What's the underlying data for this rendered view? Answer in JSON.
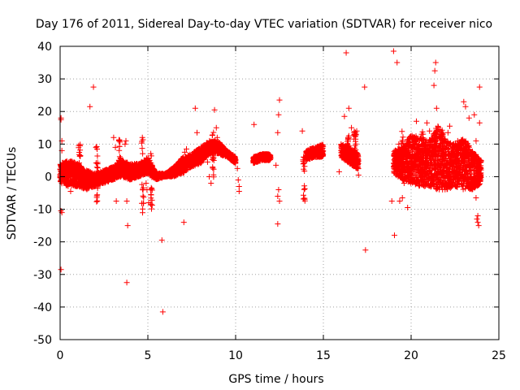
{
  "chart_data": {
    "type": "scatter",
    "title": "Day 176 of 2011, Sidereal Day-to-day VTEC variation (SDTVAR) for receiver nico",
    "xlabel": "GPS time / hours",
    "ylabel": "SDTVAR / TECUs",
    "xlim": [
      0,
      25
    ],
    "ylim": [
      -50,
      40
    ],
    "xticks": [
      0,
      5,
      10,
      15,
      20,
      25
    ],
    "yticks": [
      -50,
      -40,
      -30,
      -20,
      -10,
      0,
      10,
      20,
      30,
      40
    ],
    "grid": true,
    "marker": "+",
    "color": "#ff0000",
    "band": [
      [
        0.0,
        -2,
        4
      ],
      [
        0.5,
        -3,
        5
      ],
      [
        1.0,
        -3,
        4
      ],
      [
        1.5,
        -4,
        2
      ],
      [
        2.0,
        -3,
        1
      ],
      [
        2.5,
        -2,
        2
      ],
      [
        3.0,
        -1,
        3
      ],
      [
        3.5,
        0,
        5
      ],
      [
        4.0,
        -1,
        4
      ],
      [
        4.5,
        0,
        4
      ],
      [
        5.0,
        1,
        6
      ],
      [
        5.5,
        -1,
        1
      ],
      [
        6.0,
        0,
        1
      ],
      [
        6.5,
        0,
        3
      ],
      [
        7.0,
        1,
        6
      ],
      [
        7.5,
        3,
        7
      ],
      [
        8.0,
        4,
        9
      ],
      [
        8.5,
        7,
        11
      ],
      [
        9.0,
        7,
        11
      ],
      [
        9.5,
        6,
        8
      ],
      [
        10.0,
        4,
        6
      ],
      [
        11.0,
        4,
        6
      ],
      [
        11.5,
        5,
        7
      ],
      [
        12.0,
        5,
        7
      ],
      [
        13.0,
        5,
        7
      ],
      [
        14.0,
        5,
        8
      ],
      [
        14.5,
        6,
        9
      ],
      [
        15.0,
        6,
        10
      ],
      [
        16.0,
        6,
        10
      ],
      [
        16.5,
        4,
        9
      ],
      [
        17.0,
        2,
        7
      ],
      [
        18.0,
        0,
        6
      ],
      [
        19.0,
        1,
        8
      ],
      [
        19.5,
        -1,
        9
      ],
      [
        20.0,
        -2,
        13
      ],
      [
        20.5,
        -3,
        12
      ],
      [
        21.0,
        -3,
        11
      ],
      [
        21.5,
        -4,
        16
      ],
      [
        22.0,
        -4,
        11
      ],
      [
        22.5,
        -3,
        10
      ],
      [
        23.0,
        -4,
        12
      ],
      [
        23.5,
        -4,
        8
      ],
      [
        24.0,
        -2,
        5
      ]
    ],
    "plumes": [
      [
        1.1,
        4.5,
        0.9
      ],
      [
        2.1,
        0.5,
        1.5
      ],
      [
        3.4,
        5.5,
        1.0
      ],
      [
        4.7,
        0.5,
        2.0
      ],
      [
        5.2,
        -1.0,
        1.5
      ],
      [
        8.7,
        6.5,
        1.2
      ],
      [
        13.9,
        -0.5,
        1.2
      ],
      [
        16.4,
        10.0,
        0.45
      ],
      [
        16.8,
        11.0,
        0.7
      ],
      [
        19.5,
        8.0,
        1.0
      ],
      [
        20.7,
        7.0,
        1.2
      ],
      [
        21.4,
        8.0,
        1.0
      ],
      [
        21.8,
        9.0,
        0.9
      ],
      [
        22.6,
        7.0,
        1.0
      ]
    ],
    "outliers": [
      [
        0.05,
        18
      ],
      [
        0.05,
        17.5
      ],
      [
        0.1,
        11
      ],
      [
        0.1,
        8
      ],
      [
        0.05,
        -10.5
      ],
      [
        0.1,
        -11
      ],
      [
        0.05,
        -28.5
      ],
      [
        0.6,
        -4.5
      ],
      [
        1.7,
        21.5
      ],
      [
        1.9,
        27.5
      ],
      [
        3.05,
        12
      ],
      [
        3.15,
        9
      ],
      [
        3.2,
        -7.5
      ],
      [
        3.7,
        10
      ],
      [
        3.75,
        11
      ],
      [
        3.8,
        -7.5
      ],
      [
        3.85,
        -15
      ],
      [
        3.8,
        -32.5
      ],
      [
        4.9,
        -2
      ],
      [
        4.95,
        -4
      ],
      [
        5.05,
        -8
      ],
      [
        5.8,
        -19.5
      ],
      [
        5.85,
        -41.5
      ],
      [
        7.05,
        -14
      ],
      [
        7.1,
        7.5
      ],
      [
        7.2,
        8.5
      ],
      [
        7.7,
        21
      ],
      [
        7.8,
        13.5
      ],
      [
        8.4,
        4.5
      ],
      [
        8.5,
        0
      ],
      [
        8.6,
        -2
      ],
      [
        8.8,
        20.5
      ],
      [
        8.9,
        15
      ],
      [
        8.95,
        12
      ],
      [
        10.1,
        2.5
      ],
      [
        10.15,
        -1
      ],
      [
        10.2,
        -3
      ],
      [
        10.2,
        -4.5
      ],
      [
        11.05,
        16
      ],
      [
        12.3,
        3.5
      ],
      [
        12.4,
        13.5
      ],
      [
        12.45,
        19
      ],
      [
        12.5,
        23.5
      ],
      [
        12.45,
        -4
      ],
      [
        12.4,
        -6
      ],
      [
        12.5,
        -7.5
      ],
      [
        12.4,
        -14.5
      ],
      [
        13.8,
        14
      ],
      [
        15.9,
        1.5
      ],
      [
        16.3,
        38
      ],
      [
        16.45,
        21
      ],
      [
        16.6,
        15
      ],
      [
        16.2,
        18.5
      ],
      [
        16.9,
        14
      ],
      [
        17.0,
        0.5
      ],
      [
        17.35,
        27.5
      ],
      [
        17.4,
        -22.5
      ],
      [
        18.9,
        -7.5
      ],
      [
        19.0,
        38.5
      ],
      [
        19.05,
        -18
      ],
      [
        19.2,
        35
      ],
      [
        19.3,
        10
      ],
      [
        19.35,
        -7.5
      ],
      [
        19.5,
        -6.5
      ],
      [
        19.6,
        -2
      ],
      [
        19.8,
        -9.5
      ],
      [
        20.3,
        17
      ],
      [
        20.6,
        13
      ],
      [
        20.9,
        16.5
      ],
      [
        21.05,
        14
      ],
      [
        21.3,
        28
      ],
      [
        21.35,
        32.5
      ],
      [
        21.4,
        35
      ],
      [
        21.45,
        21
      ],
      [
        22.1,
        13.5
      ],
      [
        22.2,
        15.5
      ],
      [
        23.0,
        23
      ],
      [
        23.1,
        21.5
      ],
      [
        23.3,
        18
      ],
      [
        23.6,
        19
      ],
      [
        23.7,
        11
      ],
      [
        23.7,
        -6.5
      ],
      [
        23.75,
        -13
      ],
      [
        23.8,
        -14
      ],
      [
        23.85,
        -15
      ],
      [
        23.8,
        -12
      ],
      [
        23.9,
        16.5
      ],
      [
        23.9,
        27.5
      ]
    ]
  }
}
